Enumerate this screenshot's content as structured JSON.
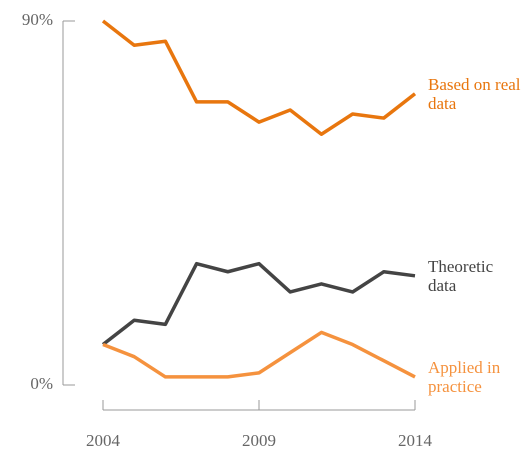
{
  "chart_data": {
    "type": "line",
    "x": [
      2004,
      2005,
      2006,
      2007,
      2008,
      2009,
      2010,
      2011,
      2012,
      2013,
      2014
    ],
    "xlim": [
      2004,
      2014
    ],
    "xticks": [
      2004,
      2009,
      2014
    ],
    "ylim": [
      0,
      90
    ],
    "yticks": [
      {
        "value": 0,
        "label": "0%"
      },
      {
        "value": 90,
        "label": "90%"
      }
    ],
    "series": [
      {
        "name": "Based on real data",
        "color": "#e8760e",
        "values": [
          90,
          84,
          85,
          70,
          70,
          65,
          68,
          62,
          67,
          66,
          72
        ]
      },
      {
        "name": "Theoretic data",
        "color": "#444444",
        "values": [
          10,
          16,
          15,
          30,
          28,
          30,
          23,
          25,
          23,
          28,
          27
        ]
      },
      {
        "name": "Applied in practice",
        "color": "#f5923e",
        "values": [
          10,
          7,
          2,
          2,
          2,
          3,
          8,
          13,
          10,
          6,
          2
        ]
      }
    ]
  }
}
